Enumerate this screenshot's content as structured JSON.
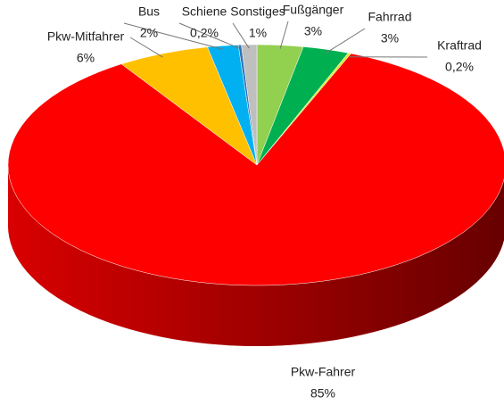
{
  "chart_data": {
    "type": "pie",
    "categories": [
      "Fußgänger",
      "Fahrrad",
      "Kraftrad",
      "Pkw-Fahrer",
      "Pkw-Mitfahrer",
      "Bus",
      "Schiene",
      "Sonstiges"
    ],
    "values": [
      3,
      3,
      0.2,
      85,
      6,
      2,
      0.2,
      1
    ],
    "value_labels": [
      "3%",
      "3%",
      "0,2%",
      "85%",
      "6%",
      "2%",
      "0,2%",
      "1%"
    ],
    "colors": [
      "#92d050",
      "#00b050",
      "#d4ef3a",
      "#ff0000",
      "#ffc000",
      "#00b0f0",
      "#2e75b6",
      "#bfbfbf"
    ]
  }
}
